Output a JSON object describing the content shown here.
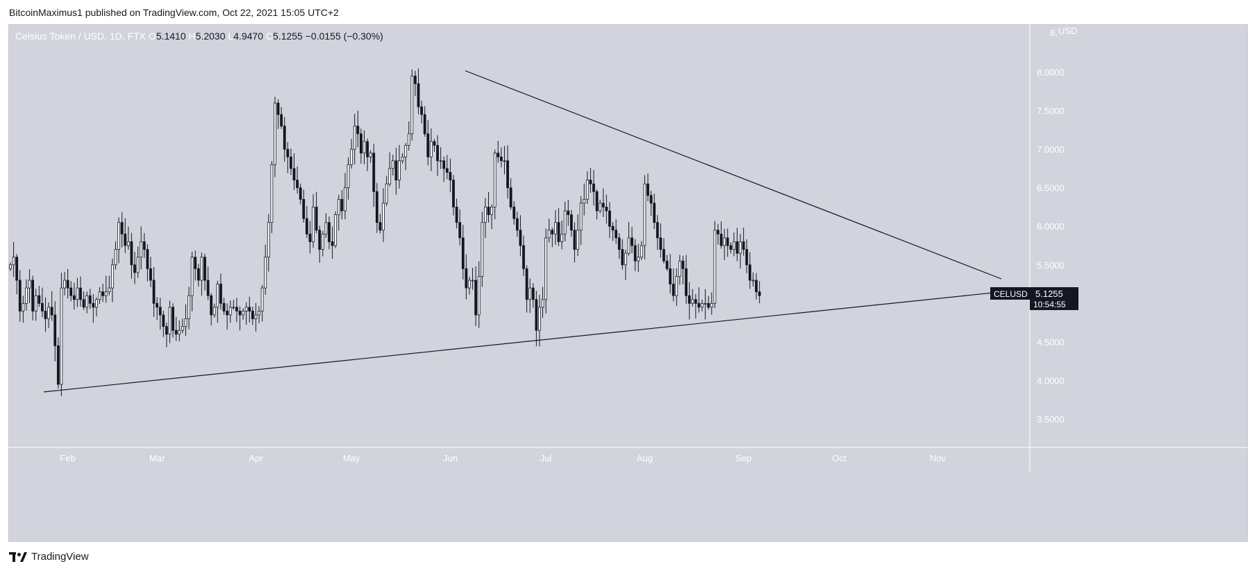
{
  "header": {
    "publisher_line": "BitcoinMaximus1 published on TradingView.com, Oct 22, 2021 15:05 UTC+2"
  },
  "legend": {
    "symbol": "Celsius Token / USD, 1D, FTX",
    "o_label": "O",
    "o_value": "5.1410",
    "h_label": "H",
    "h_value": "5.2030",
    "l_label": "L",
    "l_value": "4.9470",
    "c_label": "C",
    "c_value": "5.1255",
    "change": "−0.0155 (−0.30%)"
  },
  "price_tag": {
    "symbol": "CELUSD",
    "price": "5.1255",
    "countdown": "10:54:55"
  },
  "footer": {
    "brand": "TradingView",
    "logo_icon": "tradingview-logo-icon"
  },
  "colors": {
    "background": "#d1d4dc",
    "candle_up_fill": "#ffffff",
    "candle_down_fill": "#131722",
    "outline": "#131722",
    "label_text": "#ffffff"
  },
  "chart_data": {
    "type": "candlestick",
    "title": "Celsius Token / USD, 1D, FTX",
    "y_unit": "USD",
    "ylim": [
      3.0,
      8.2
    ],
    "y_ticks": [
      "8.0000",
      "7.5000",
      "7.0000",
      "6.5000",
      "6.0000",
      "5.5000",
      "5.0000",
      "4.5000",
      "4.0000",
      "3.5000"
    ],
    "y_top_partial": "8.",
    "x_ticks": [
      "Feb",
      "Mar",
      "Apr",
      "May",
      "Jun",
      "Jul",
      "Aug",
      "Sep",
      "Oct",
      "Nov"
    ],
    "x_start": "2021-01-14",
    "closes": [
      5.5,
      5.6,
      5.3,
      4.9,
      5.0,
      5.2,
      5.3,
      4.9,
      5.1,
      5.0,
      4.9,
      4.8,
      4.95,
      4.85,
      4.45,
      3.95,
      5.2,
      5.3,
      5.2,
      5.1,
      5.05,
      5.2,
      5.05,
      4.95,
      5.1,
      5.0,
      4.95,
      5.05,
      5.15,
      5.1,
      5.15,
      5.2,
      5.5,
      5.7,
      6.05,
      5.9,
      5.75,
      5.8,
      5.5,
      5.4,
      5.6,
      5.8,
      5.7,
      5.45,
      5.3,
      5.0,
      4.95,
      4.85,
      4.7,
      4.6,
      4.95,
      4.65,
      4.6,
      4.65,
      4.7,
      4.8,
      5.1,
      5.6,
      5.45,
      5.3,
      5.6,
      5.3,
      5.1,
      4.85,
      4.95,
      5.25,
      5.0,
      4.9,
      4.85,
      4.95,
      4.95,
      4.9,
      4.85,
      4.9,
      4.95,
      4.9,
      4.8,
      4.85,
      4.9,
      5.2,
      5.6,
      6.05,
      6.8,
      7.6,
      7.45,
      7.3,
      7.0,
      6.9,
      6.75,
      6.6,
      6.5,
      6.35,
      6.1,
      5.9,
      5.8,
      6.25,
      5.95,
      5.7,
      5.9,
      6.05,
      5.8,
      5.75,
      6.15,
      6.35,
      6.2,
      6.5,
      6.8,
      7.0,
      7.3,
      7.2,
      6.95,
      7.1,
      6.9,
      6.95,
      6.45,
      6.05,
      5.95,
      6.3,
      6.55,
      6.75,
      6.85,
      6.6,
      6.85,
      6.9,
      7.05,
      7.2,
      7.95,
      7.85,
      7.55,
      7.45,
      7.2,
      6.9,
      7.1,
      7.05,
      6.85,
      6.85,
      6.75,
      6.7,
      6.6,
      6.25,
      6.05,
      5.85,
      5.45,
      5.2,
      5.3,
      5.3,
      4.85,
      5.35,
      6.05,
      6.25,
      6.15,
      6.25,
      6.95,
      6.9,
      6.85,
      6.85,
      6.5,
      6.25,
      6.1,
      5.95,
      5.75,
      5.45,
      5.05,
      5.2,
      5.05,
      4.65,
      4.95,
      5.05,
      5.85,
      5.95,
      5.9,
      6.05,
      5.8,
      5.9,
      6.2,
      6.15,
      5.95,
      5.7,
      5.95,
      6.3,
      6.35,
      6.6,
      6.55,
      6.45,
      6.2,
      6.3,
      6.25,
      6.2,
      6.0,
      5.95,
      5.85,
      5.7,
      5.5,
      5.65,
      5.85,
      5.75,
      5.55,
      5.6,
      5.75,
      6.55,
      6.4,
      6.3,
      6.05,
      5.85,
      5.7,
      5.55,
      5.45,
      5.25,
      5.1,
      5.35,
      5.55,
      5.45,
      5.1,
      5.0,
      5.05,
      5.0,
      4.95,
      5.0,
      5.0,
      4.95,
      5.0,
      5.95,
      5.9,
      5.75,
      5.85,
      5.75,
      5.7,
      5.8,
      5.65,
      5.8,
      5.7,
      5.5,
      5.3,
      5.3,
      5.15,
      5.1
    ]
  }
}
